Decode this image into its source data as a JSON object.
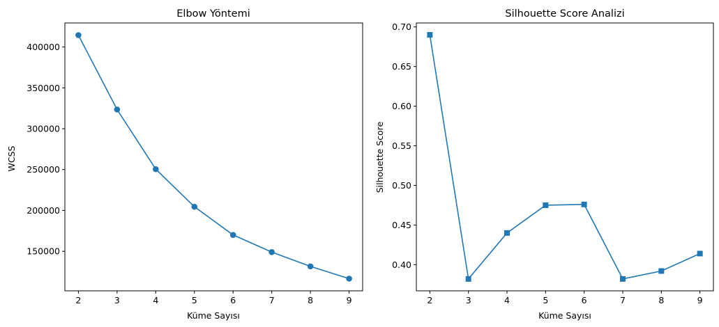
{
  "chart_data": [
    {
      "type": "line",
      "title": "Elbow Yöntemi",
      "xlabel": "Küme Sayısı",
      "ylabel": "WCSS",
      "marker": "circle",
      "color": "#1f77b4",
      "x": [
        2,
        3,
        4,
        5,
        6,
        7,
        8,
        9
      ],
      "values": [
        414500,
        323500,
        250500,
        204500,
        170000,
        149000,
        131500,
        116500
      ],
      "xlim": [
        1.65,
        9.35
      ],
      "ylim": [
        101600,
        429400
      ],
      "xticks": [
        2,
        3,
        4,
        5,
        6,
        7,
        8,
        9
      ],
      "yticks": [
        150000,
        200000,
        250000,
        300000,
        350000,
        400000
      ],
      "ytick_labels": [
        "150000",
        "200000",
        "250000",
        "300000",
        "350000",
        "400000"
      ],
      "grid": false
    },
    {
      "type": "line",
      "title": "Silhouette Score Analizi",
      "xlabel": "Küme Sayısı",
      "ylabel": "Silhouette Score",
      "marker": "square",
      "color": "#1f77b4",
      "x": [
        2,
        3,
        4,
        5,
        6,
        7,
        8,
        9
      ],
      "values": [
        0.69,
        0.382,
        0.44,
        0.475,
        0.476,
        0.382,
        0.392,
        0.414
      ],
      "xlim": [
        1.65,
        9.35
      ],
      "ylim": [
        0.367,
        0.705
      ],
      "xticks": [
        2,
        3,
        4,
        5,
        6,
        7,
        8,
        9
      ],
      "yticks": [
        0.4,
        0.45,
        0.5,
        0.55,
        0.6,
        0.65,
        0.7
      ],
      "ytick_labels": [
        "0.40",
        "0.45",
        "0.50",
        "0.55",
        "0.60",
        "0.65",
        "0.70"
      ],
      "grid": false
    }
  ]
}
